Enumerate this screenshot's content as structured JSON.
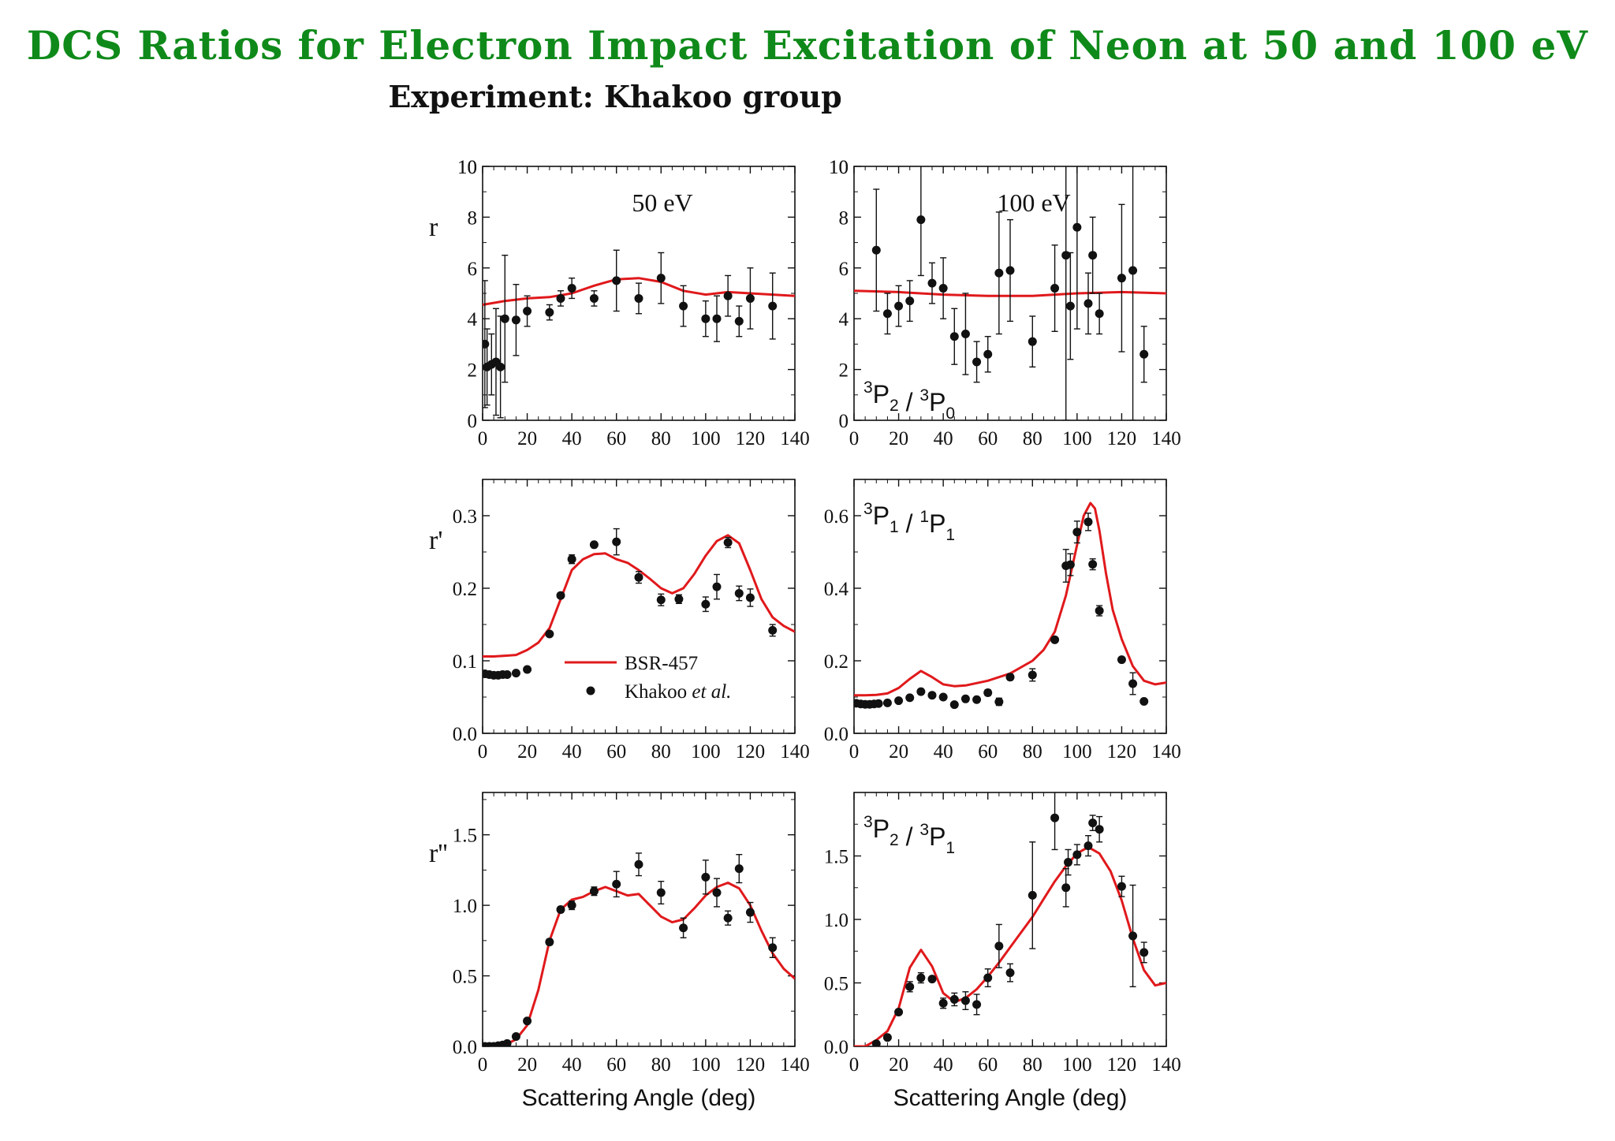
{
  "page": {
    "title": "DCS Ratios for Electron Impact Excitation of Neon at 50 and 100 eV",
    "subtitle": "Experiment: Khakoo group"
  },
  "colors": {
    "title": "#0f8a1a",
    "theory": "#e0191c",
    "experiment": "#111111"
  },
  "chart_data": [
    {
      "type": "line",
      "panel": "top-left",
      "ylabel": "r",
      "annotation": "50 eV",
      "xlim": [
        0,
        140
      ],
      "ylim": [
        0,
        10
      ],
      "xticks": [
        0,
        20,
        40,
        60,
        80,
        100,
        120,
        140
      ],
      "yticks": [
        0,
        2,
        4,
        6,
        8,
        10
      ],
      "yticklabels": [
        "0",
        "2",
        "4",
        "6",
        "8",
        "10"
      ],
      "series": [
        {
          "kind": "line",
          "x": [
            0,
            10,
            20,
            30,
            40,
            50,
            60,
            70,
            80,
            90,
            100,
            110,
            120,
            130,
            140
          ],
          "y": [
            4.55,
            4.7,
            4.8,
            4.85,
            5.0,
            5.3,
            5.55,
            5.6,
            5.45,
            5.1,
            4.95,
            5.05,
            5.0,
            4.95,
            4.9
          ]
        },
        {
          "kind": "points",
          "x": [
            1,
            2,
            4,
            6,
            8,
            10,
            15,
            20,
            30,
            35,
            40,
            50,
            60,
            70,
            80,
            90,
            100,
            105,
            110,
            115,
            120,
            130
          ],
          "y": [
            3.0,
            2.1,
            2.2,
            2.3,
            2.1,
            4.0,
            3.95,
            4.3,
            4.25,
            4.8,
            5.2,
            4.8,
            5.5,
            4.8,
            5.6,
            4.5,
            4.0,
            4.0,
            4.9,
            3.9,
            4.8,
            4.5
          ],
          "err": [
            2.5,
            1.5,
            1.2,
            2.1,
            2.0,
            2.5,
            1.4,
            0.6,
            0.3,
            0.3,
            0.4,
            0.3,
            1.2,
            0.6,
            1.0,
            0.8,
            0.7,
            0.9,
            0.8,
            0.6,
            1.2,
            1.3
          ]
        }
      ]
    },
    {
      "type": "line",
      "panel": "top-right",
      "annotation": "100 eV",
      "transition": "3P2 / 3P0",
      "xlim": [
        0,
        140
      ],
      "ylim": [
        0,
        10
      ],
      "xticks": [
        0,
        20,
        40,
        60,
        80,
        100,
        120,
        140
      ],
      "yticks": [
        0,
        2,
        4,
        6,
        8,
        10
      ],
      "yticklabels": [
        "0",
        "2",
        "4",
        "6",
        "8",
        "10"
      ],
      "series": [
        {
          "kind": "line",
          "x": [
            0,
            20,
            40,
            60,
            80,
            100,
            120,
            140
          ],
          "y": [
            5.1,
            5.05,
            4.95,
            4.9,
            4.9,
            5.0,
            5.05,
            5.0
          ]
        },
        {
          "kind": "points",
          "x": [
            10,
            15,
            20,
            25,
            30,
            35,
            40,
            45,
            50,
            55,
            60,
            65,
            70,
            80,
            90,
            95,
            97,
            100,
            105,
            107,
            110,
            120,
            125,
            130
          ],
          "y": [
            6.7,
            4.2,
            4.5,
            4.7,
            7.9,
            5.4,
            5.2,
            3.3,
            3.4,
            2.3,
            2.6,
            5.8,
            5.9,
            3.1,
            5.2,
            6.5,
            4.5,
            7.6,
            4.6,
            6.5,
            4.2,
            5.6,
            5.9,
            2.6
          ],
          "err": [
            2.4,
            0.8,
            0.8,
            0.8,
            2.2,
            0.8,
            1.2,
            1.1,
            1.6,
            0.8,
            0.7,
            2.4,
            2.0,
            1.0,
            1.7,
            6.5,
            2.1,
            4.0,
            1.2,
            1.5,
            0.8,
            2.9,
            5.9,
            1.1
          ]
        }
      ]
    },
    {
      "type": "line",
      "panel": "middle-left",
      "ylabel": "r'",
      "xlim": [
        0,
        140
      ],
      "ylim": [
        0,
        0.35
      ],
      "xticks": [
        0,
        20,
        40,
        60,
        80,
        100,
        120,
        140
      ],
      "yticks": [
        0,
        0.1,
        0.2,
        0.3
      ],
      "yticklabels": [
        "0.0",
        "0.1",
        "0.2",
        "0.3"
      ],
      "legend": {
        "position": "inside-lower-center",
        "line_label": "BSR-457",
        "points_label_main": "Khakoo ",
        "points_label_italic": "et al."
      },
      "series": [
        {
          "kind": "line",
          "x": [
            0,
            5,
            10,
            15,
            20,
            25,
            30,
            35,
            40,
            45,
            50,
            55,
            60,
            65,
            70,
            75,
            80,
            85,
            90,
            95,
            100,
            105,
            110,
            115,
            120,
            125,
            130,
            135,
            140
          ],
          "y": [
            0.106,
            0.106,
            0.107,
            0.108,
            0.115,
            0.125,
            0.145,
            0.185,
            0.225,
            0.24,
            0.247,
            0.248,
            0.24,
            0.235,
            0.225,
            0.213,
            0.2,
            0.193,
            0.2,
            0.22,
            0.245,
            0.265,
            0.273,
            0.262,
            0.225,
            0.185,
            0.16,
            0.148,
            0.14
          ]
        },
        {
          "kind": "points",
          "x": [
            1,
            3,
            5,
            7,
            9,
            11,
            15,
            20,
            30,
            35,
            40,
            50,
            60,
            70,
            80,
            88,
            100,
            105,
            110,
            115,
            120,
            130
          ],
          "y": [
            0.082,
            0.081,
            0.08,
            0.08,
            0.081,
            0.081,
            0.083,
            0.088,
            0.137,
            0.19,
            0.24,
            0.26,
            0.264,
            0.215,
            0.184,
            0.185,
            0.178,
            0.202,
            0.263,
            0.193,
            0.187,
            0.142
          ],
          "err": [
            0,
            0,
            0,
            0,
            0,
            0,
            0,
            0,
            0.003,
            0.003,
            0.006,
            0.003,
            0.018,
            0.008,
            0.008,
            0.006,
            0.01,
            0.017,
            0.007,
            0.01,
            0.012,
            0.008
          ]
        }
      ]
    },
    {
      "type": "line",
      "panel": "middle-right",
      "transition": "3P1 / 1P1",
      "xlim": [
        0,
        140
      ],
      "ylim": [
        0,
        0.7
      ],
      "xticks": [
        0,
        20,
        40,
        60,
        80,
        100,
        120,
        140
      ],
      "yticks": [
        0,
        0.2,
        0.4,
        0.6
      ],
      "yticklabels": [
        "0.0",
        "0.2",
        "0.4",
        "0.6"
      ],
      "series": [
        {
          "kind": "line",
          "x": [
            0,
            5,
            10,
            15,
            20,
            25,
            30,
            35,
            40,
            45,
            50,
            60,
            70,
            80,
            85,
            90,
            95,
            100,
            103,
            106,
            108,
            110,
            113,
            116,
            120,
            125,
            130,
            135,
            140
          ],
          "y": [
            0.105,
            0.105,
            0.106,
            0.11,
            0.125,
            0.15,
            0.172,
            0.155,
            0.135,
            0.13,
            0.132,
            0.145,
            0.165,
            0.2,
            0.23,
            0.28,
            0.38,
            0.52,
            0.6,
            0.635,
            0.62,
            0.56,
            0.44,
            0.34,
            0.26,
            0.185,
            0.145,
            0.135,
            0.14
          ]
        },
        {
          "kind": "points",
          "x": [
            1,
            3,
            5,
            7,
            9,
            11,
            15,
            20,
            25,
            30,
            35,
            40,
            45,
            50,
            55,
            60,
            65,
            70,
            80,
            90,
            95,
            97,
            100,
            105,
            107,
            110,
            120,
            125,
            130
          ],
          "y": [
            0.083,
            0.081,
            0.08,
            0.08,
            0.081,
            0.082,
            0.084,
            0.09,
            0.098,
            0.115,
            0.105,
            0.1,
            0.079,
            0.095,
            0.093,
            0.112,
            0.087,
            0.155,
            0.161,
            0.258,
            0.462,
            0.465,
            0.555,
            0.583,
            0.466,
            0.338,
            0.203,
            0.137,
            0.088
          ],
          "err": [
            0,
            0,
            0,
            0,
            0,
            0,
            0,
            0,
            0,
            0.006,
            0,
            0,
            0.005,
            0,
            0,
            0.008,
            0.01,
            0.008,
            0.017,
            0.005,
            0.045,
            0.03,
            0.03,
            0.024,
            0.015,
            0.014,
            0.007,
            0.03,
            0.005
          ]
        }
      ]
    },
    {
      "type": "line",
      "panel": "bottom-left",
      "ylabel": "r''",
      "xlabel": "Scattering Angle (deg)",
      "xlim": [
        0,
        140
      ],
      "ylim": [
        0,
        1.8
      ],
      "xticks": [
        0,
        20,
        40,
        60,
        80,
        100,
        120,
        140
      ],
      "yticks": [
        0,
        0.5,
        1.0,
        1.5
      ],
      "yticklabels": [
        "0.0",
        "0.5",
        "1.0",
        "1.5"
      ],
      "series": [
        {
          "kind": "line",
          "x": [
            0,
            5,
            10,
            15,
            20,
            25,
            30,
            35,
            40,
            45,
            50,
            55,
            60,
            65,
            70,
            75,
            80,
            85,
            90,
            95,
            100,
            105,
            110,
            115,
            120,
            125,
            130,
            135,
            140
          ],
          "y": [
            0.0,
            0.0,
            0.01,
            0.05,
            0.15,
            0.4,
            0.75,
            0.97,
            1.04,
            1.06,
            1.1,
            1.13,
            1.1,
            1.07,
            1.08,
            1.0,
            0.92,
            0.88,
            0.9,
            0.98,
            1.07,
            1.13,
            1.16,
            1.12,
            1.0,
            0.82,
            0.66,
            0.55,
            0.48
          ]
        },
        {
          "kind": "points",
          "x": [
            1,
            3,
            5,
            7,
            9,
            11,
            15,
            20,
            30,
            35,
            40,
            50,
            60,
            70,
            80,
            90,
            100,
            105,
            110,
            115,
            120,
            130
          ],
          "y": [
            0.0,
            0.0,
            0.0,
            0.005,
            0.01,
            0.02,
            0.07,
            0.18,
            0.74,
            0.97,
            1.0,
            1.1,
            1.15,
            1.29,
            1.09,
            0.84,
            1.2,
            1.09,
            0.91,
            1.26,
            0.95,
            0.7
          ],
          "err": [
            0,
            0,
            0,
            0,
            0,
            0,
            0,
            0.01,
            0.02,
            0.02,
            0.03,
            0.03,
            0.09,
            0.08,
            0.08,
            0.07,
            0.12,
            0.1,
            0.05,
            0.1,
            0.07,
            0.07
          ]
        }
      ]
    },
    {
      "type": "line",
      "panel": "bottom-right",
      "transition": "3P2 / 3P1",
      "xlabel": "Scattering Angle (deg)",
      "xlim": [
        0,
        140
      ],
      "ylim": [
        0,
        2.0
      ],
      "xticks": [
        0,
        20,
        40,
        60,
        80,
        100,
        120,
        140
      ],
      "yticks": [
        0,
        0.5,
        1.0,
        1.5
      ],
      "yticklabels": [
        "0.0",
        "0.5",
        "1.0",
        "1.5"
      ],
      "series": [
        {
          "kind": "line",
          "x": [
            0,
            5,
            10,
            15,
            20,
            25,
            30,
            35,
            40,
            45,
            50,
            55,
            60,
            65,
            70,
            75,
            80,
            85,
            90,
            95,
            100,
            105,
            110,
            115,
            120,
            125,
            130,
            135,
            140
          ],
          "y": [
            0.0,
            0.0,
            0.05,
            0.12,
            0.3,
            0.62,
            0.76,
            0.63,
            0.42,
            0.35,
            0.38,
            0.45,
            0.55,
            0.66,
            0.78,
            0.9,
            1.02,
            1.16,
            1.3,
            1.42,
            1.52,
            1.57,
            1.52,
            1.38,
            1.15,
            0.85,
            0.6,
            0.48,
            0.5
          ]
        },
        {
          "kind": "points",
          "x": [
            10,
            15,
            20,
            25,
            30,
            35,
            40,
            45,
            50,
            55,
            60,
            65,
            70,
            80,
            90,
            95,
            96,
            100,
            105,
            107,
            110,
            120,
            125,
            130
          ],
          "y": [
            0.02,
            0.07,
            0.27,
            0.47,
            0.54,
            0.53,
            0.34,
            0.37,
            0.36,
            0.33,
            0.54,
            0.79,
            0.58,
            1.19,
            1.8,
            1.25,
            1.45,
            1.51,
            1.58,
            1.76,
            1.71,
            1.26,
            0.87,
            0.74
          ],
          "err": [
            0,
            0,
            0.02,
            0.04,
            0.04,
            0.02,
            0.04,
            0.05,
            0.07,
            0.08,
            0.07,
            0.17,
            0.07,
            0.42,
            0.25,
            0.15,
            0.1,
            0.08,
            0.08,
            0.06,
            0.1,
            0.08,
            0.4,
            0.08
          ]
        }
      ]
    }
  ]
}
